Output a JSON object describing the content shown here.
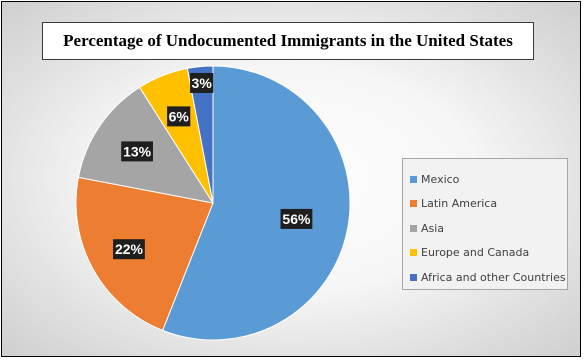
{
  "chart_data": {
    "type": "pie",
    "title": "Percentage of Undocumented Immigrants in  the United States",
    "categories": [
      "Mexico",
      "Latin America",
      "Asia",
      "Europe and Canada",
      "Africa and other Countries"
    ],
    "values": [
      56,
      22,
      13,
      6,
      3
    ],
    "data_labels": [
      "56%",
      "22%",
      "13%",
      "6%",
      "3%"
    ],
    "colors": [
      "#5b9bd5",
      "#ed7d31",
      "#a5a5a5",
      "#ffc000",
      "#4472c4"
    ],
    "legend_position": "right",
    "start_angle": "12 o'clock",
    "direction": "clockwise"
  }
}
